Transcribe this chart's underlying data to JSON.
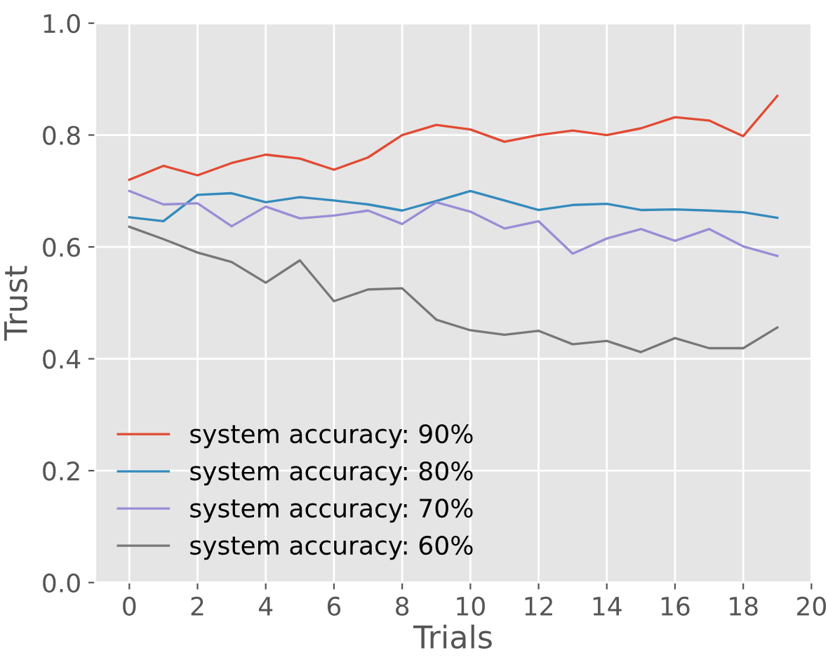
{
  "chart_data": {
    "type": "line",
    "xlabel": "Trials",
    "ylabel": "Trust",
    "x": [
      0,
      1,
      2,
      3,
      4,
      5,
      6,
      7,
      8,
      9,
      10,
      11,
      12,
      13,
      14,
      15,
      16,
      17,
      18,
      19
    ],
    "xlim": [
      -1,
      20
    ],
    "xticks": [
      0,
      2,
      4,
      6,
      8,
      10,
      12,
      14,
      16,
      18,
      20
    ],
    "ylim": [
      0.0,
      1.0
    ],
    "yticks": [
      {
        "value": 0,
        "label": "0.0"
      },
      {
        "value": 0.2,
        "label": "0.2"
      },
      {
        "value": 0.4,
        "label": "0.4"
      },
      {
        "value": 0.6,
        "label": "0.6"
      },
      {
        "value": 0.8,
        "label": "0.8"
      },
      {
        "value": 1,
        "label": "1.0"
      }
    ],
    "grid": true,
    "legend": "bottom left",
    "marker": "none",
    "line_style": "solid",
    "series": [
      {
        "name": "system accuracy: 90%",
        "color": "#e24a33",
        "values": [
          0.72,
          0.745,
          0.728,
          0.75,
          0.765,
          0.758,
          0.738,
          0.76,
          0.8,
          0.818,
          0.81,
          0.788,
          0.8,
          0.808,
          0.8,
          0.812,
          0.832,
          0.826,
          0.798,
          0.87
        ]
      },
      {
        "name": "system accuracy: 80%",
        "color": "#348abd",
        "values": [
          0.653,
          0.646,
          0.693,
          0.696,
          0.68,
          0.689,
          0.683,
          0.676,
          0.665,
          0.682,
          0.7,
          0.683,
          0.666,
          0.675,
          0.677,
          0.666,
          0.667,
          0.665,
          0.662,
          0.652
        ]
      },
      {
        "name": "system accuracy: 70%",
        "color": "#988ed5",
        "values": [
          0.7,
          0.676,
          0.678,
          0.637,
          0.672,
          0.651,
          0.656,
          0.665,
          0.641,
          0.68,
          0.663,
          0.633,
          0.646,
          0.588,
          0.615,
          0.632,
          0.611,
          0.632,
          0.601,
          0.584
        ]
      },
      {
        "name": "system accuracy: 60%",
        "color": "#777777",
        "values": [
          0.636,
          0.614,
          0.59,
          0.573,
          0.536,
          0.576,
          0.503,
          0.524,
          0.526,
          0.47,
          0.451,
          0.443,
          0.45,
          0.426,
          0.432,
          0.412,
          0.437,
          0.419,
          0.419,
          0.456
        ]
      }
    ]
  }
}
